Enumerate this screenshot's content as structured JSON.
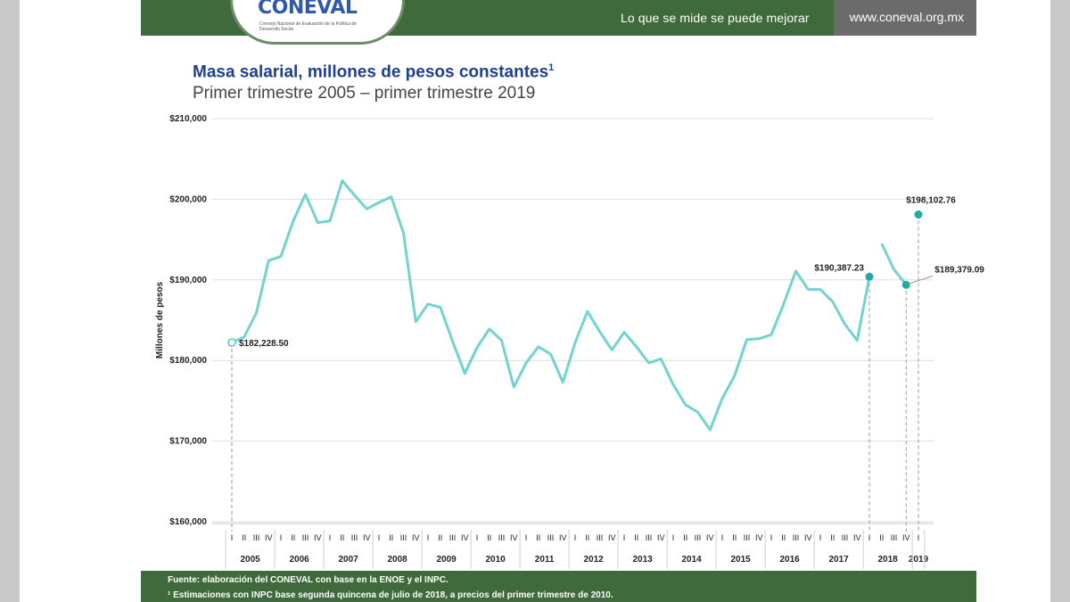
{
  "header": {
    "logo": "CONEVAL",
    "logo_subtitle": "Consejo Nacional de Evaluación de la Política de Desarrollo Social",
    "tagline": "Lo que se mide se puede mejorar",
    "website": "www.coneval.org.mx",
    "brand_color": "#3f6b3c"
  },
  "chart_data": {
    "type": "line",
    "title": "Masa salarial, millones de pesos constantes",
    "title_sup": "1",
    "subtitle": "Primer trimestre 2005 – primer trimestre 2019",
    "ylabel": "Millones de pesos",
    "ylim": [
      160000,
      210000
    ],
    "yticks": [
      160000,
      170000,
      180000,
      190000,
      200000,
      210000
    ],
    "ytick_labels": [
      "$160,000",
      "$170,000",
      "$180,000",
      "$190,000",
      "$200,000",
      "$210,000"
    ],
    "grid": true,
    "line_color": "#73d3cf",
    "years": [
      "2005",
      "2006",
      "2007",
      "2008",
      "2009",
      "2010",
      "2011",
      "2012",
      "2013",
      "2014",
      "2015",
      "2016",
      "2017",
      "2018",
      "2019"
    ],
    "quarter_labels": [
      "I",
      "II",
      "III",
      "IV"
    ],
    "series": [
      {
        "values": [
          182228.5,
          182900,
          185900,
          192400,
          192900,
          197300,
          200600,
          197100,
          197300,
          202300,
          200500,
          198800,
          199600,
          200300,
          195800,
          184800,
          187000,
          186600,
          182400,
          178400,
          181600,
          183900,
          182500,
          176700,
          179700,
          181700,
          180800,
          177300,
          182200,
          186100,
          183600,
          181300,
          183500,
          181700,
          179700,
          180200,
          177000,
          174500,
          173600,
          171400,
          175300,
          178100,
          182600,
          182700,
          183200,
          187000,
          191100,
          188800,
          188800,
          187300,
          184500,
          182500,
          190387.23,
          194500,
          191300,
          189379.09,
          198102.76
        ],
        "segment_breaks": [
          53,
          56
        ]
      }
    ],
    "annotations": [
      {
        "index": 0,
        "label": "$182,228.50",
        "marker": "open"
      },
      {
        "index": 52,
        "label": "$190,387.23",
        "marker": "filled"
      },
      {
        "index": 55,
        "label": "$189,379.09",
        "marker": "filled"
      },
      {
        "index": 56,
        "label": "$198,102.76",
        "marker": "filled"
      }
    ]
  },
  "footer": {
    "source": "Fuente: elaboración del CONEVAL con base en la ENOE y el INPC.",
    "note": "¹ Estimaciones con INPC base segunda quincena de julio de 2018, a precios del primer trimestre de 2010."
  }
}
